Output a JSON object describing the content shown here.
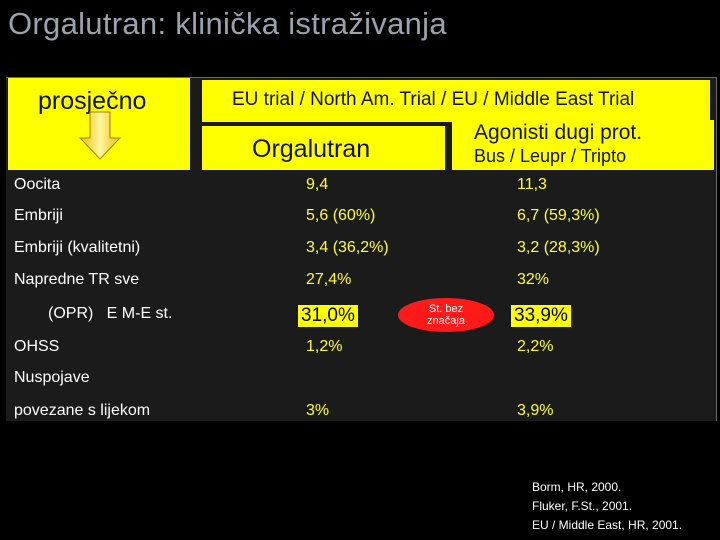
{
  "title": "Orgalutran: klinička istraživanja",
  "header": {
    "left": "prosječno",
    "trial": "EU trial / North Am. Trial / EU / Middle East Trial",
    "col1": "Orgalutran",
    "col2_line1": "Agonisti dugi prot.",
    "col2_line2": "Bus / Leupr / Tripto"
  },
  "rows": [
    {
      "label": "Oocita",
      "v1": "9,4",
      "v2": "11,3"
    },
    {
      "label": "Embriji",
      "v1": "5,6 (60%)",
      "v2": "6,7 (59,3%)"
    },
    {
      "label": "Embriji (kvalitetni)",
      "v1": "3,4 (36,2%)",
      "v2": "3,2 (28,3%)"
    },
    {
      "label": "Napredne TR sve",
      "v1": "27,4%",
      "v2": "32%"
    },
    {
      "label": "(OPR)   E M-E st.",
      "v1": "31,0%",
      "v2": "33,9%"
    },
    {
      "label": "OHSS",
      "v1": "1,2%",
      "v2": "2,2%"
    },
    {
      "label": "Nuspojave",
      "v1": "",
      "v2": ""
    },
    {
      "label": "povezane s lijekom",
      "v1": "3%",
      "v2": "3,9%"
    }
  ],
  "badge": {
    "line1": "St. bez",
    "line2": "značaja"
  },
  "references": [
    "Borm, HR, 2000.",
    "Fluker, F.St., 2001.",
    "EU / Middle East, HR, 2001."
  ],
  "colors": {
    "background": "#000000",
    "header": "#ffff00",
    "values": "#ffff33",
    "badge": "#ff1a1a",
    "title": "#9aa3ad"
  },
  "icons": {
    "arrow": "arrow-down-icon"
  }
}
